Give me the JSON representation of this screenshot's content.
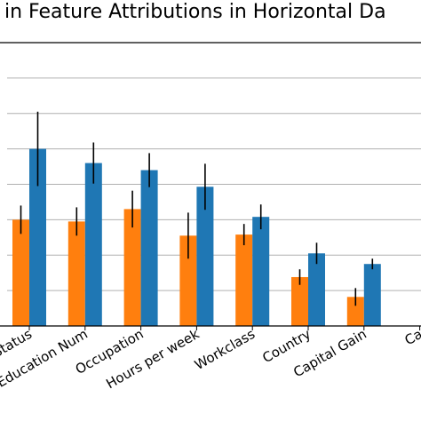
{
  "chart_data": {
    "type": "bar",
    "title": "in Feature Attributions in Horizontal Da",
    "xlabel": "",
    "ylabel": "",
    "categories": [
      "arital Status",
      "Education Num",
      "Occupation",
      "Hours per week",
      "Workclass",
      "Country",
      "Capital Gain",
      "Ca"
    ],
    "ylim": [
      0,
      8
    ],
    "yticks": [
      0,
      1,
      2,
      3,
      4,
      5,
      6,
      7,
      8
    ],
    "grid": true,
    "legend": "none",
    "series": [
      {
        "color": "#ff7f0e",
        "values": [
          3.0,
          2.95,
          3.3,
          2.55,
          2.58,
          1.38,
          0.82,
          null
        ],
        "errors": [
          0.4,
          0.4,
          0.52,
          0.65,
          0.3,
          0.22,
          0.25,
          null
        ]
      },
      {
        "color": "#1f77b4",
        "values": [
          5.0,
          4.6,
          4.4,
          3.93,
          3.08,
          2.05,
          1.75,
          null
        ],
        "errors": [
          1.05,
          0.58,
          0.48,
          0.65,
          0.35,
          0.3,
          0.15,
          null
        ]
      }
    ]
  }
}
